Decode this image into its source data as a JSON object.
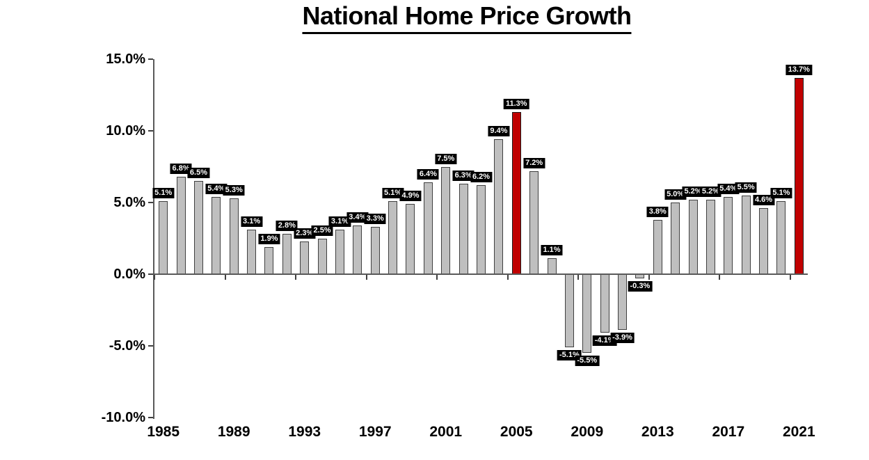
{
  "page": {
    "background": "#FFFFFF"
  },
  "chart_data": {
    "type": "bar",
    "title": "National Home Price Growth",
    "xlabel": "",
    "ylabel": "",
    "grid": false,
    "legend": false,
    "ylim": [
      -10,
      15
    ],
    "categories": [
      "1985",
      "1986",
      "1987",
      "1988",
      "1989",
      "1990",
      "1991",
      "1992",
      "1993",
      "1994",
      "1995",
      "1996",
      "1997",
      "1998",
      "1999",
      "2000",
      "2001",
      "2002",
      "2003",
      "2004",
      "2005",
      "2006",
      "2007",
      "2008",
      "2009",
      "2010",
      "2011",
      "2012",
      "2013",
      "2014",
      "2015",
      "2016",
      "2017",
      "2018",
      "2019",
      "2020",
      "2021"
    ],
    "values": [
      5.1,
      6.8,
      6.5,
      5.4,
      5.3,
      3.1,
      1.9,
      2.8,
      2.3,
      2.5,
      3.1,
      3.4,
      3.3,
      5.1,
      4.9,
      6.4,
      7.5,
      6.3,
      6.2,
      9.4,
      11.3,
      7.2,
      1.1,
      -5.1,
      -5.5,
      -4.1,
      -3.9,
      -0.3,
      3.8,
      5.0,
      5.2,
      5.2,
      5.4,
      5.5,
      4.6,
      5.1,
      13.7
    ],
    "value_labels": [
      "5.1%",
      "6.8%",
      "6.5%",
      "5.4%",
      "5.3%",
      "3.1%",
      "1.9%",
      "2.8%",
      "2.3%",
      "2.5%",
      "3.1%",
      "3.4%",
      "3.3%",
      "5.1%",
      "4.9%",
      "6.4%",
      "7.5%",
      "6.3%",
      "6.2%",
      "9.4%",
      "11.3%",
      "7.2%",
      "1.1%",
      "-5.1%",
      "-5.5%",
      "-4.1%",
      "-3.9%",
      "-0.3%",
      "3.8%",
      "5.0%",
      "5.2%",
      "5.2%",
      "5.4%",
      "5.5%",
      "4.6%",
      "5.1%",
      "13.7%"
    ],
    "highlight_indices": [
      20,
      36
    ],
    "highlighted_categories": [
      "2005",
      "2021"
    ],
    "y_ticks": [
      {
        "value": 15,
        "label": "15.0%"
      },
      {
        "value": 10,
        "label": "10.0%"
      },
      {
        "value": 5,
        "label": "5.0%"
      },
      {
        "value": 0,
        "label": "0.0%"
      },
      {
        "value": -5,
        "label": "-5.0%"
      },
      {
        "value": -10,
        "label": "-10.0%"
      }
    ],
    "x_tick_labels": [
      "1985",
      "1989",
      "1993",
      "1997",
      "2001",
      "2005",
      "2009",
      "2013",
      "2017",
      "2021"
    ],
    "x_tick_interval": 4,
    "colors": {
      "bar_fill": "#BFBFBF",
      "bar_border": "#3F3F3F",
      "highlight_fill": "#C00000",
      "highlight_border": "#1A1A1A",
      "label_bg": "#000000",
      "label_text": "#FFFFFF",
      "axis": "#595959",
      "text": "#000000"
    }
  }
}
